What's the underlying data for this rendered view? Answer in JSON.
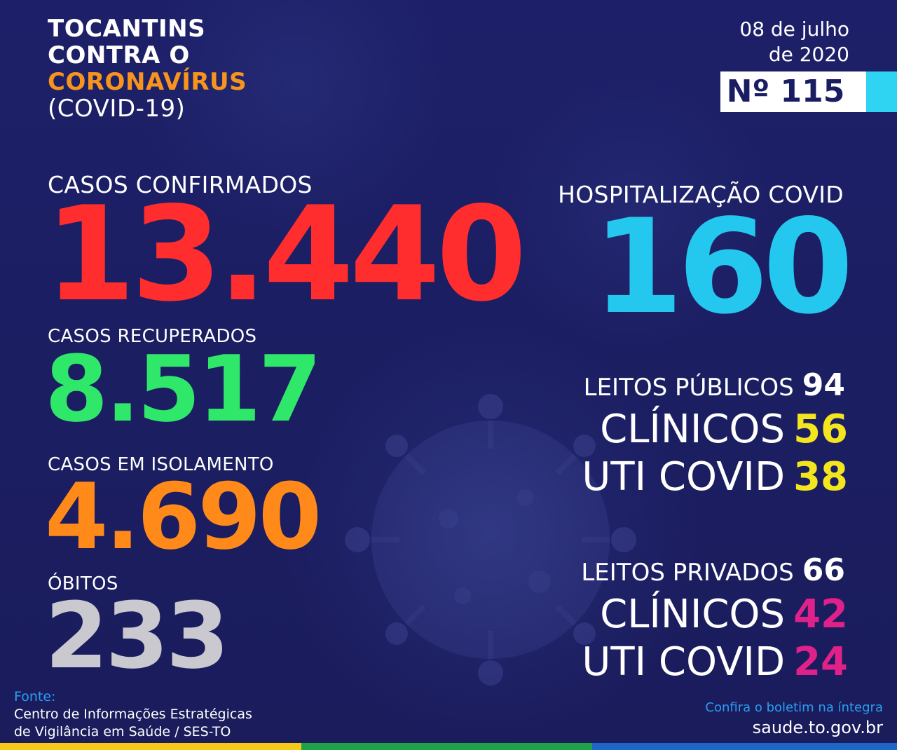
{
  "header": {
    "title_line1": "TOCANTINS",
    "title_line2": "CONTRA O",
    "title_line3": "CORONAVÍRUS",
    "title_line4": "(COVID-19)",
    "date_line1": "08 de julho",
    "date_line2": "de 2020",
    "issue": "Nº 115"
  },
  "stats": {
    "confirmed_label": "CASOS CONFIRMADOS",
    "confirmed_value": "13.440",
    "recovered_label": "CASOS RECUPERADOS",
    "recovered_value": "8.517",
    "isolation_label": "CASOS EM ISOLAMENTO",
    "isolation_value": "4.690",
    "deaths_label": "ÓBITOS",
    "deaths_value": "233"
  },
  "hospital": {
    "label": "HOSPITALIZAÇÃO COVID",
    "value": "160",
    "public_label": "LEITOS PÚBLICOS",
    "public_value": "94",
    "public_clinical_label": "CLÍNICOS",
    "public_clinical_value": "56",
    "public_icu_label": "UTI COVID",
    "public_icu_value": "38",
    "private_label": "LEITOS PRIVADOS",
    "private_value": "66",
    "private_clinical_label": "CLÍNICOS",
    "private_clinical_value": "42",
    "private_icu_label": "UTI COVID",
    "private_icu_value": "24"
  },
  "footer": {
    "source_heading": "Fonte:",
    "source_line1": "Centro de Informações Estratégicas",
    "source_line2": "de Vigilância em Saúde / SES-TO",
    "link_text": "Confira o boletim na íntegra",
    "url": "saude.to.gov.br"
  },
  "colors": {
    "background": "#1a1d62",
    "confirmed": "#ff2d2d",
    "recovered": "#2fe86a",
    "isolation": "#ff8a1a",
    "deaths": "#c9c9cf",
    "hospital": "#24c8ef",
    "public_values": "#f3e61e",
    "private_values": "#e0218a",
    "accent_orange": "#f7941d"
  }
}
